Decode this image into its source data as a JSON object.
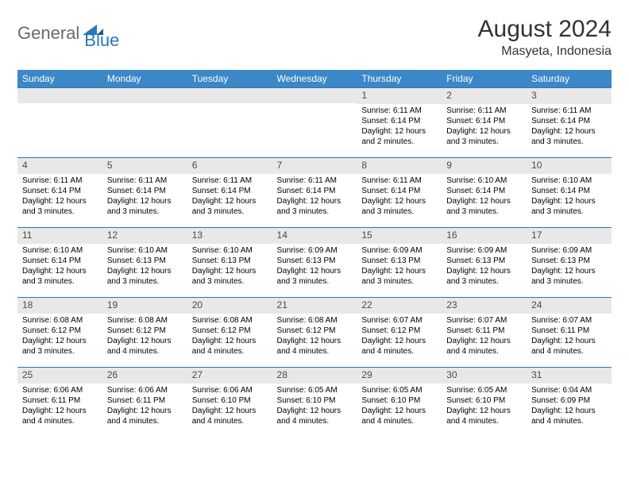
{
  "logo": {
    "text1": "General",
    "text2": "Blue"
  },
  "title": "August 2024",
  "location": "Masyeta, Indonesia",
  "colors": {
    "header_bg": "#3c87c7",
    "header_text": "#ffffff",
    "border": "#2a77b8",
    "daynum_bg": "#e8e8e8",
    "daynum_text": "#4a4a4a",
    "logo_gray": "#6a6a6a",
    "logo_blue": "#2a77b8"
  },
  "weekdays": [
    "Sunday",
    "Monday",
    "Tuesday",
    "Wednesday",
    "Thursday",
    "Friday",
    "Saturday"
  ],
  "weeks": [
    [
      {
        "n": "",
        "sr": "",
        "ss": "",
        "dl": ""
      },
      {
        "n": "",
        "sr": "",
        "ss": "",
        "dl": ""
      },
      {
        "n": "",
        "sr": "",
        "ss": "",
        "dl": ""
      },
      {
        "n": "",
        "sr": "",
        "ss": "",
        "dl": ""
      },
      {
        "n": "1",
        "sr": "Sunrise: 6:11 AM",
        "ss": "Sunset: 6:14 PM",
        "dl": "Daylight: 12 hours and 2 minutes."
      },
      {
        "n": "2",
        "sr": "Sunrise: 6:11 AM",
        "ss": "Sunset: 6:14 PM",
        "dl": "Daylight: 12 hours and 3 minutes."
      },
      {
        "n": "3",
        "sr": "Sunrise: 6:11 AM",
        "ss": "Sunset: 6:14 PM",
        "dl": "Daylight: 12 hours and 3 minutes."
      }
    ],
    [
      {
        "n": "4",
        "sr": "Sunrise: 6:11 AM",
        "ss": "Sunset: 6:14 PM",
        "dl": "Daylight: 12 hours and 3 minutes."
      },
      {
        "n": "5",
        "sr": "Sunrise: 6:11 AM",
        "ss": "Sunset: 6:14 PM",
        "dl": "Daylight: 12 hours and 3 minutes."
      },
      {
        "n": "6",
        "sr": "Sunrise: 6:11 AM",
        "ss": "Sunset: 6:14 PM",
        "dl": "Daylight: 12 hours and 3 minutes."
      },
      {
        "n": "7",
        "sr": "Sunrise: 6:11 AM",
        "ss": "Sunset: 6:14 PM",
        "dl": "Daylight: 12 hours and 3 minutes."
      },
      {
        "n": "8",
        "sr": "Sunrise: 6:11 AM",
        "ss": "Sunset: 6:14 PM",
        "dl": "Daylight: 12 hours and 3 minutes."
      },
      {
        "n": "9",
        "sr": "Sunrise: 6:10 AM",
        "ss": "Sunset: 6:14 PM",
        "dl": "Daylight: 12 hours and 3 minutes."
      },
      {
        "n": "10",
        "sr": "Sunrise: 6:10 AM",
        "ss": "Sunset: 6:14 PM",
        "dl": "Daylight: 12 hours and 3 minutes."
      }
    ],
    [
      {
        "n": "11",
        "sr": "Sunrise: 6:10 AM",
        "ss": "Sunset: 6:14 PM",
        "dl": "Daylight: 12 hours and 3 minutes."
      },
      {
        "n": "12",
        "sr": "Sunrise: 6:10 AM",
        "ss": "Sunset: 6:13 PM",
        "dl": "Daylight: 12 hours and 3 minutes."
      },
      {
        "n": "13",
        "sr": "Sunrise: 6:10 AM",
        "ss": "Sunset: 6:13 PM",
        "dl": "Daylight: 12 hours and 3 minutes."
      },
      {
        "n": "14",
        "sr": "Sunrise: 6:09 AM",
        "ss": "Sunset: 6:13 PM",
        "dl": "Daylight: 12 hours and 3 minutes."
      },
      {
        "n": "15",
        "sr": "Sunrise: 6:09 AM",
        "ss": "Sunset: 6:13 PM",
        "dl": "Daylight: 12 hours and 3 minutes."
      },
      {
        "n": "16",
        "sr": "Sunrise: 6:09 AM",
        "ss": "Sunset: 6:13 PM",
        "dl": "Daylight: 12 hours and 3 minutes."
      },
      {
        "n": "17",
        "sr": "Sunrise: 6:09 AM",
        "ss": "Sunset: 6:13 PM",
        "dl": "Daylight: 12 hours and 3 minutes."
      }
    ],
    [
      {
        "n": "18",
        "sr": "Sunrise: 6:08 AM",
        "ss": "Sunset: 6:12 PM",
        "dl": "Daylight: 12 hours and 3 minutes."
      },
      {
        "n": "19",
        "sr": "Sunrise: 6:08 AM",
        "ss": "Sunset: 6:12 PM",
        "dl": "Daylight: 12 hours and 4 minutes."
      },
      {
        "n": "20",
        "sr": "Sunrise: 6:08 AM",
        "ss": "Sunset: 6:12 PM",
        "dl": "Daylight: 12 hours and 4 minutes."
      },
      {
        "n": "21",
        "sr": "Sunrise: 6:08 AM",
        "ss": "Sunset: 6:12 PM",
        "dl": "Daylight: 12 hours and 4 minutes."
      },
      {
        "n": "22",
        "sr": "Sunrise: 6:07 AM",
        "ss": "Sunset: 6:12 PM",
        "dl": "Daylight: 12 hours and 4 minutes."
      },
      {
        "n": "23",
        "sr": "Sunrise: 6:07 AM",
        "ss": "Sunset: 6:11 PM",
        "dl": "Daylight: 12 hours and 4 minutes."
      },
      {
        "n": "24",
        "sr": "Sunrise: 6:07 AM",
        "ss": "Sunset: 6:11 PM",
        "dl": "Daylight: 12 hours and 4 minutes."
      }
    ],
    [
      {
        "n": "25",
        "sr": "Sunrise: 6:06 AM",
        "ss": "Sunset: 6:11 PM",
        "dl": "Daylight: 12 hours and 4 minutes."
      },
      {
        "n": "26",
        "sr": "Sunrise: 6:06 AM",
        "ss": "Sunset: 6:11 PM",
        "dl": "Daylight: 12 hours and 4 minutes."
      },
      {
        "n": "27",
        "sr": "Sunrise: 6:06 AM",
        "ss": "Sunset: 6:10 PM",
        "dl": "Daylight: 12 hours and 4 minutes."
      },
      {
        "n": "28",
        "sr": "Sunrise: 6:05 AM",
        "ss": "Sunset: 6:10 PM",
        "dl": "Daylight: 12 hours and 4 minutes."
      },
      {
        "n": "29",
        "sr": "Sunrise: 6:05 AM",
        "ss": "Sunset: 6:10 PM",
        "dl": "Daylight: 12 hours and 4 minutes."
      },
      {
        "n": "30",
        "sr": "Sunrise: 6:05 AM",
        "ss": "Sunset: 6:10 PM",
        "dl": "Daylight: 12 hours and 4 minutes."
      },
      {
        "n": "31",
        "sr": "Sunrise: 6:04 AM",
        "ss": "Sunset: 6:09 PM",
        "dl": "Daylight: 12 hours and 4 minutes."
      }
    ]
  ]
}
